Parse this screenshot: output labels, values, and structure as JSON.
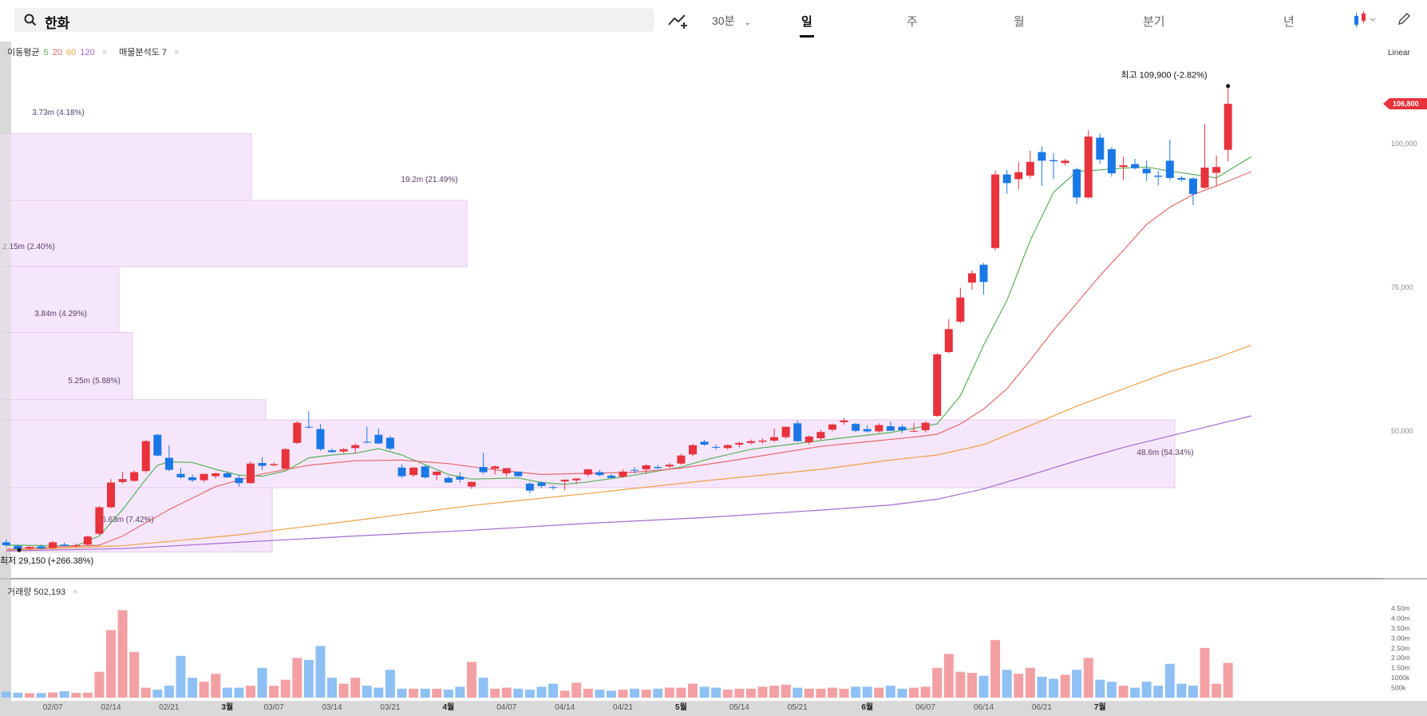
{
  "search": {
    "query": "한화"
  },
  "toolbar": {
    "interval": "30분",
    "tabs": [
      {
        "label": "일",
        "active": true
      },
      {
        "label": "주",
        "active": false
      },
      {
        "label": "월",
        "active": false
      },
      {
        "label": "분기",
        "active": false
      },
      {
        "label": "년",
        "active": false
      }
    ],
    "scale": "Linear"
  },
  "indicators": {
    "ma_label": "이동평균",
    "ma_periods": [
      {
        "period": "5",
        "color": "#58b25a"
      },
      {
        "period": "20",
        "color": "#e66a6a"
      },
      {
        "period": "60",
        "color": "#f0a046"
      },
      {
        "period": "120",
        "color": "#a56ad0"
      }
    ],
    "profile_label": "매물분석도 7"
  },
  "volume_label": "거래량 502,193",
  "colors": {
    "up": "#e8323c",
    "down": "#1a78e6",
    "profile": "#f6e6fb"
  },
  "chart_data": {
    "type": "candlestick",
    "y_axis": {
      "ticks": [
        "50,000",
        "75,000",
        "100,000"
      ],
      "current_price": "106,800"
    },
    "high_note": "최고 109,900 (-2.82%)",
    "low_note": "최저 29,150 (+266.38%)",
    "x_ticks": [
      "02/07",
      "02/14",
      "02/21",
      "3월",
      "03/07",
      "03/14",
      "03/21",
      "4월",
      "04/07",
      "04/14",
      "04/21",
      "5월",
      "05/14",
      "05/21",
      "6월",
      "06/07",
      "06/14",
      "06/21",
      "7월"
    ],
    "volume_ticks": [
      "4.50m",
      "4.00m",
      "3.50m",
      "3.00m",
      "2.50m",
      "2.00m",
      "1.50m",
      "1000k",
      "500k"
    ],
    "volume_profile": [
      {
        "label": "3.73m (4.18%)",
        "low": 90000,
        "high": 101600
      },
      {
        "label": "19.2m (21.49%)",
        "low": 78500,
        "high": 90000
      },
      {
        "label": "2.15m (2.40%)",
        "low": 67000,
        "high": 78500
      },
      {
        "label": "3.84m (4.29%)",
        "low": 55300,
        "high": 67000
      },
      {
        "label": "5.25m (5.88%)",
        "low": 43900,
        "high": 55300
      },
      {
        "label": "48.6m (54.34%)",
        "low": 40000,
        "high": 51800
      },
      {
        "label": "6.63m (7.42%)",
        "low": 28800,
        "high": 40000
      }
    ],
    "candles": [
      {
        "o": 30500,
        "h": 31000,
        "l": 29700,
        "c": 30000
      },
      {
        "o": 29900,
        "h": 30100,
        "l": 29200,
        "c": 29300
      },
      {
        "o": 29400,
        "h": 29900,
        "l": 29200,
        "c": 29700
      },
      {
        "o": 29800,
        "h": 30100,
        "l": 29300,
        "c": 29400
      },
      {
        "o": 29500,
        "h": 30700,
        "l": 29400,
        "c": 30500
      },
      {
        "o": 30100,
        "h": 30500,
        "l": 29700,
        "c": 29900
      },
      {
        "o": 29900,
        "h": 30300,
        "l": 29600,
        "c": 30000
      },
      {
        "o": 30100,
        "h": 31700,
        "l": 30000,
        "c": 31500
      },
      {
        "o": 32000,
        "h": 36800,
        "l": 31800,
        "c": 36600
      },
      {
        "o": 36600,
        "h": 41500,
        "l": 36400,
        "c": 40900
      },
      {
        "o": 41000,
        "h": 42800,
        "l": 40700,
        "c": 41500
      },
      {
        "o": 41200,
        "h": 43000,
        "l": 41000,
        "c": 42700
      },
      {
        "o": 42900,
        "h": 48300,
        "l": 42600,
        "c": 48100
      },
      {
        "o": 49200,
        "h": 49400,
        "l": 45400,
        "c": 45600
      },
      {
        "o": 45200,
        "h": 47400,
        "l": 42900,
        "c": 43100
      },
      {
        "o": 42400,
        "h": 43400,
        "l": 41600,
        "c": 41800
      },
      {
        "o": 41800,
        "h": 42300,
        "l": 41000,
        "c": 41300
      },
      {
        "o": 41300,
        "h": 42400,
        "l": 40900,
        "c": 42400
      },
      {
        "o": 42000,
        "h": 42600,
        "l": 41600,
        "c": 42500
      },
      {
        "o": 42500,
        "h": 42800,
        "l": 41700,
        "c": 41800
      },
      {
        "o": 41700,
        "h": 42200,
        "l": 40200,
        "c": 40800
      },
      {
        "o": 40800,
        "h": 44600,
        "l": 40700,
        "c": 44200
      },
      {
        "o": 44300,
        "h": 45300,
        "l": 43100,
        "c": 43800
      },
      {
        "o": 43900,
        "h": 44400,
        "l": 43700,
        "c": 44100
      },
      {
        "o": 43300,
        "h": 47000,
        "l": 43200,
        "c": 46700
      },
      {
        "o": 47800,
        "h": 51600,
        "l": 47600,
        "c": 51300
      },
      {
        "o": 50600,
        "h": 53300,
        "l": 50300,
        "c": 50500
      },
      {
        "o": 50200,
        "h": 51100,
        "l": 46400,
        "c": 46700
      },
      {
        "o": 46500,
        "h": 46800,
        "l": 46100,
        "c": 46200
      },
      {
        "o": 46300,
        "h": 46900,
        "l": 46000,
        "c": 46700
      },
      {
        "o": 46900,
        "h": 47700,
        "l": 46000,
        "c": 47400
      },
      {
        "o": 48000,
        "h": 50600,
        "l": 47700,
        "c": 47900
      },
      {
        "o": 49200,
        "h": 50300,
        "l": 47600,
        "c": 47700
      },
      {
        "o": 48700,
        "h": 49000,
        "l": 46500,
        "c": 46800
      },
      {
        "o": 43500,
        "h": 44100,
        "l": 41700,
        "c": 42000
      },
      {
        "o": 42200,
        "h": 43600,
        "l": 41900,
        "c": 43500
      },
      {
        "o": 43700,
        "h": 43900,
        "l": 41600,
        "c": 41800
      },
      {
        "o": 42200,
        "h": 42700,
        "l": 41300,
        "c": 42800
      },
      {
        "o": 41700,
        "h": 42000,
        "l": 40800,
        "c": 40900
      },
      {
        "o": 41900,
        "h": 42700,
        "l": 40900,
        "c": 41400
      },
      {
        "o": 40200,
        "h": 41100,
        "l": 39800,
        "c": 41000
      },
      {
        "o": 43600,
        "h": 46100,
        "l": 42400,
        "c": 42700
      },
      {
        "o": 43300,
        "h": 43900,
        "l": 42300,
        "c": 43700
      },
      {
        "o": 42500,
        "h": 43200,
        "l": 42000,
        "c": 43400
      },
      {
        "o": 42800,
        "h": 42800,
        "l": 41900,
        "c": 42000
      },
      {
        "o": 40700,
        "h": 41000,
        "l": 39000,
        "c": 39500
      },
      {
        "o": 40900,
        "h": 41100,
        "l": 39900,
        "c": 40300
      },
      {
        "o": 40100,
        "h": 40400,
        "l": 39600,
        "c": 40000
      },
      {
        "o": 41100,
        "h": 41400,
        "l": 39600,
        "c": 41400
      },
      {
        "o": 41300,
        "h": 41600,
        "l": 40700,
        "c": 41600
      },
      {
        "o": 42300,
        "h": 42800,
        "l": 41900,
        "c": 43200
      },
      {
        "o": 42700,
        "h": 43100,
        "l": 42000,
        "c": 42200
      },
      {
        "o": 42100,
        "h": 42400,
        "l": 41800,
        "c": 41700
      },
      {
        "o": 41900,
        "h": 43200,
        "l": 41700,
        "c": 42800
      },
      {
        "o": 43100,
        "h": 43600,
        "l": 42500,
        "c": 43000
      },
      {
        "o": 43200,
        "h": 44100,
        "l": 42400,
        "c": 43900
      },
      {
        "o": 43600,
        "h": 44000,
        "l": 43300,
        "c": 43400
      },
      {
        "o": 43700,
        "h": 44300,
        "l": 43400,
        "c": 44000
      },
      {
        "o": 44200,
        "h": 45900,
        "l": 44000,
        "c": 45600
      },
      {
        "o": 45800,
        "h": 47600,
        "l": 45500,
        "c": 47400
      },
      {
        "o": 48000,
        "h": 48300,
        "l": 47300,
        "c": 47500
      },
      {
        "o": 47100,
        "h": 47500,
        "l": 46600,
        "c": 47000
      },
      {
        "o": 46900,
        "h": 47600,
        "l": 46600,
        "c": 47400
      },
      {
        "o": 47500,
        "h": 48000,
        "l": 47000,
        "c": 47800
      },
      {
        "o": 47800,
        "h": 48400,
        "l": 47500,
        "c": 48100
      },
      {
        "o": 48000,
        "h": 48600,
        "l": 47700,
        "c": 48200
      },
      {
        "o": 48200,
        "h": 50300,
        "l": 47900,
        "c": 48800
      },
      {
        "o": 48800,
        "h": 50300,
        "l": 48500,
        "c": 50600
      },
      {
        "o": 51200,
        "h": 51700,
        "l": 48000,
        "c": 48100
      },
      {
        "o": 47900,
        "h": 49100,
        "l": 47500,
        "c": 48900
      },
      {
        "o": 48600,
        "h": 50100,
        "l": 48300,
        "c": 49700
      },
      {
        "o": 50100,
        "h": 51200,
        "l": 49800,
        "c": 51000
      },
      {
        "o": 51400,
        "h": 52100,
        "l": 51000,
        "c": 51700
      },
      {
        "o": 51100,
        "h": 51300,
        "l": 49700,
        "c": 49900
      },
      {
        "o": 50200,
        "h": 50900,
        "l": 49600,
        "c": 49800
      },
      {
        "o": 49800,
        "h": 51200,
        "l": 49600,
        "c": 50900
      },
      {
        "o": 50700,
        "h": 51500,
        "l": 50300,
        "c": 49900
      },
      {
        "o": 50600,
        "h": 51000,
        "l": 49500,
        "c": 50000
      },
      {
        "o": 49900,
        "h": 51300,
        "l": 49700,
        "c": 49900
      },
      {
        "o": 50000,
        "h": 51500,
        "l": 49600,
        "c": 51300
      },
      {
        "o": 52500,
        "h": 63400,
        "l": 52300,
        "c": 63200
      },
      {
        "o": 63600,
        "h": 69300,
        "l": 63400,
        "c": 67600
      },
      {
        "o": 68900,
        "h": 74800,
        "l": 68600,
        "c": 73100
      },
      {
        "o": 75700,
        "h": 77800,
        "l": 74500,
        "c": 77300
      },
      {
        "o": 78800,
        "h": 79100,
        "l": 73600,
        "c": 75800
      },
      {
        "o": 81700,
        "h": 95200,
        "l": 81300,
        "c": 94500
      },
      {
        "o": 94500,
        "h": 95300,
        "l": 91200,
        "c": 93000
      },
      {
        "o": 93700,
        "h": 96700,
        "l": 91900,
        "c": 94900
      },
      {
        "o": 94300,
        "h": 98600,
        "l": 93800,
        "c": 96700
      },
      {
        "o": 98400,
        "h": 99400,
        "l": 92500,
        "c": 96900
      },
      {
        "o": 97000,
        "h": 98200,
        "l": 93700,
        "c": 96800
      },
      {
        "o": 96500,
        "h": 97200,
        "l": 96100,
        "c": 96900
      },
      {
        "o": 95400,
        "h": 95700,
        "l": 89400,
        "c": 90500
      },
      {
        "o": 90500,
        "h": 102200,
        "l": 90300,
        "c": 101100
      },
      {
        "o": 100900,
        "h": 101600,
        "l": 96400,
        "c": 97100
      },
      {
        "o": 98900,
        "h": 99300,
        "l": 94100,
        "c": 94700
      },
      {
        "o": 95800,
        "h": 97600,
        "l": 93500,
        "c": 96100
      },
      {
        "o": 96300,
        "h": 97200,
        "l": 95300,
        "c": 95600
      },
      {
        "o": 95500,
        "h": 96900,
        "l": 93400,
        "c": 94700
      },
      {
        "o": 94300,
        "h": 95100,
        "l": 92600,
        "c": 94100
      },
      {
        "o": 96900,
        "h": 100600,
        "l": 93500,
        "c": 93900
      },
      {
        "o": 93900,
        "h": 94200,
        "l": 93300,
        "c": 93600
      },
      {
        "o": 93800,
        "h": 94000,
        "l": 89200,
        "c": 91100
      },
      {
        "o": 92200,
        "h": 103300,
        "l": 92000,
        "c": 95700
      },
      {
        "o": 94800,
        "h": 97800,
        "l": 92500,
        "c": 95800
      },
      {
        "o": 98800,
        "h": 109900,
        "l": 96800,
        "c": 106800
      }
    ],
    "volumes": [
      300,
      250,
      220,
      230,
      260,
      320,
      240,
      250,
      1300,
      3400,
      4400,
      2300,
      500,
      400,
      600,
      2100,
      1000,
      800,
      1200,
      500,
      500,
      600,
      1500,
      600,
      900,
      2000,
      1900,
      2600,
      1000,
      700,
      1000,
      600,
      500,
      1400,
      450,
      450,
      450,
      450,
      400,
      550,
      1800,
      1000,
      450,
      500,
      450,
      400,
      550,
      700,
      350,
      750,
      450,
      400,
      350,
      400,
      450,
      400,
      450,
      500,
      500,
      700,
      550,
      500,
      400,
      450,
      450,
      550,
      600,
      650,
      500,
      450,
      450,
      500,
      450,
      550,
      550,
      500,
      600,
      450,
      500,
      550,
      1500,
      2200,
      1300,
      1250,
      1100,
      2900,
      1400,
      1200,
      1500,
      1050,
      950,
      1150,
      1400,
      2000,
      900,
      800,
      600,
      500,
      800,
      600,
      1700,
      700,
      600,
      2500,
      700,
      1750
    ],
    "moving_averages": {
      "ma5": [
        [
          0,
          30000
        ],
        [
          6,
          29900
        ],
        [
          8,
          31600
        ],
        [
          10,
          36200
        ],
        [
          12,
          41500
        ],
        [
          13,
          43900
        ],
        [
          14,
          44500
        ],
        [
          16,
          44400
        ],
        [
          18,
          43200
        ],
        [
          20,
          42200
        ],
        [
          22,
          42000
        ],
        [
          24,
          42900
        ],
        [
          26,
          45200
        ],
        [
          28,
          45700
        ],
        [
          30,
          46000
        ],
        [
          32,
          46800
        ],
        [
          34,
          45700
        ],
        [
          36,
          44000
        ],
        [
          38,
          42300
        ],
        [
          40,
          41500
        ],
        [
          44,
          41700
        ],
        [
          46,
          40900
        ],
        [
          48,
          40600
        ],
        [
          50,
          41000
        ],
        [
          54,
          42200
        ],
        [
          58,
          43600
        ],
        [
          60,
          44800
        ],
        [
          64,
          46700
        ],
        [
          68,
          47700
        ],
        [
          72,
          48700
        ],
        [
          76,
          49600
        ],
        [
          80,
          51100
        ],
        [
          82,
          56000
        ],
        [
          84,
          64800
        ],
        [
          86,
          72600
        ],
        [
          88,
          83000
        ],
        [
          90,
          91400
        ],
        [
          92,
          95000
        ],
        [
          96,
          95600
        ],
        [
          98,
          95800
        ],
        [
          100,
          95100
        ],
        [
          104,
          93900
        ],
        [
          107,
          97600
        ]
      ],
      "ma20": [
        [
          0,
          29300
        ],
        [
          8,
          30000
        ],
        [
          10,
          31600
        ],
        [
          14,
          36200
        ],
        [
          18,
          40200
        ],
        [
          22,
          42400
        ],
        [
          26,
          43900
        ],
        [
          30,
          44700
        ],
        [
          34,
          44800
        ],
        [
          38,
          44200
        ],
        [
          42,
          43100
        ],
        [
          46,
          42300
        ],
        [
          50,
          42500
        ],
        [
          54,
          42700
        ],
        [
          58,
          43400
        ],
        [
          62,
          44600
        ],
        [
          66,
          45900
        ],
        [
          70,
          47200
        ],
        [
          74,
          48000
        ],
        [
          78,
          48800
        ],
        [
          80,
          49300
        ],
        [
          82,
          51100
        ],
        [
          84,
          53700
        ],
        [
          86,
          57200
        ],
        [
          88,
          62200
        ],
        [
          90,
          67400
        ],
        [
          92,
          72100
        ],
        [
          94,
          76900
        ],
        [
          96,
          81300
        ],
        [
          98,
          85800
        ],
        [
          100,
          88800
        ],
        [
          102,
          91000
        ],
        [
          104,
          92500
        ],
        [
          107,
          95000
        ]
      ],
      "ma60": [
        [
          0,
          29100
        ],
        [
          10,
          29900
        ],
        [
          20,
          31800
        ],
        [
          30,
          34300
        ],
        [
          40,
          36900
        ],
        [
          50,
          39000
        ],
        [
          60,
          41200
        ],
        [
          70,
          43200
        ],
        [
          76,
          44800
        ],
        [
          80,
          45700
        ],
        [
          84,
          47500
        ],
        [
          88,
          50800
        ],
        [
          92,
          54200
        ],
        [
          96,
          57200
        ],
        [
          100,
          60200
        ],
        [
          104,
          62600
        ],
        [
          107,
          64800
        ]
      ],
      "ma120": [
        [
          0,
          29000
        ],
        [
          10,
          29400
        ],
        [
          20,
          30500
        ],
        [
          30,
          31600
        ],
        [
          40,
          32600
        ],
        [
          50,
          33800
        ],
        [
          60,
          34800
        ],
        [
          70,
          36100
        ],
        [
          76,
          37000
        ],
        [
          80,
          38000
        ],
        [
          84,
          39800
        ],
        [
          88,
          42200
        ],
        [
          92,
          44700
        ],
        [
          96,
          47000
        ],
        [
          100,
          49000
        ],
        [
          104,
          51000
        ],
        [
          107,
          52500
        ]
      ]
    }
  }
}
